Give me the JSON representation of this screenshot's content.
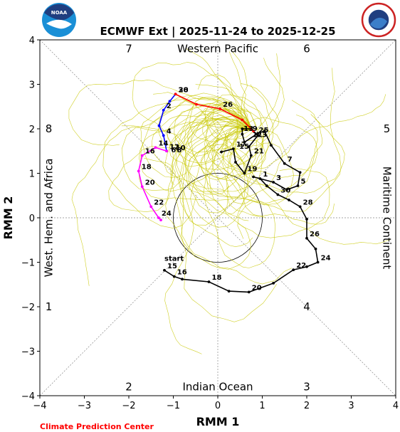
{
  "chart_data": {
    "type": "line",
    "title": "ECMWF Ext | 2025-11-24 to 2025-12-25",
    "xlabel": "RMM 1",
    "ylabel": "RMM 2",
    "xlim": [
      -4,
      4
    ],
    "ylim": [
      -4,
      4
    ],
    "x_ticks": [
      "−4",
      "−3",
      "−2",
      "−1",
      "0",
      "1",
      "2",
      "3",
      "4"
    ],
    "y_ticks": [
      "−4",
      "−3",
      "−2",
      "−1",
      "0",
      "1",
      "2",
      "3",
      "4"
    ],
    "credit": "Climate Prediction Center",
    "logos": [
      "noaa-logo",
      "national-weather-service-logo"
    ],
    "colors": {
      "observed": "#000000",
      "forecast_week1": "#0000ff",
      "forecast_week2": "#ff00ff",
      "ensemble_mean": "#ff0000",
      "ensemble_members": "#c8c800",
      "guide_lines": "#888888"
    },
    "phase_labels": [
      {
        "text": "1",
        "x": -3.8,
        "y": -2.0
      },
      {
        "text": "2",
        "x": -2.0,
        "y": -3.8
      },
      {
        "text": "3",
        "x": 2.0,
        "y": -3.8
      },
      {
        "text": "4",
        "x": 2.0,
        "y": -2.0
      },
      {
        "text": "5",
        "x": 3.8,
        "y": 2.0
      },
      {
        "text": "6",
        "x": 2.0,
        "y": 3.8
      },
      {
        "text": "7",
        "x": -2.0,
        "y": 3.8
      },
      {
        "text": "8",
        "x": -3.8,
        "y": 2.0
      }
    ],
    "region_labels": {
      "top": "Western Pacific",
      "bottom": "Indian Ocean",
      "left": "West. Hem. and Africa",
      "right": "Maritime Continent"
    },
    "series": [
      {
        "key": "observed",
        "color": "#000000",
        "points": [
          {
            "x": -1.2,
            "y": -1.18,
            "label": "15"
          },
          {
            "x": -0.98,
            "y": -1.32,
            "label": "16"
          },
          {
            "x": -0.8,
            "y": -1.38
          },
          {
            "x": -0.2,
            "y": -1.44,
            "label": "18"
          },
          {
            "x": 0.25,
            "y": -1.65
          },
          {
            "x": 0.7,
            "y": -1.67,
            "label": "20"
          },
          {
            "x": 1.25,
            "y": -1.47
          },
          {
            "x": 1.7,
            "y": -1.17,
            "label": "22"
          },
          {
            "x": 2.0,
            "y": -1.1
          },
          {
            "x": 2.25,
            "y": -1.0,
            "label": "24"
          },
          {
            "x": 2.2,
            "y": -0.7
          },
          {
            "x": 2.0,
            "y": -0.46,
            "label": "26"
          },
          {
            "x": 2.0,
            "y": -0.03
          },
          {
            "x": 1.85,
            "y": 0.25,
            "label": "28"
          },
          {
            "x": 1.6,
            "y": 0.4
          },
          {
            "x": 1.35,
            "y": 0.52,
            "label": "30"
          },
          {
            "x": 1.1,
            "y": 0.72
          },
          {
            "x": 0.95,
            "y": 0.88,
            "label": "1"
          },
          {
            "x": 0.8,
            "y": 0.92
          },
          {
            "x": 1.25,
            "y": 0.8,
            "label": "3"
          },
          {
            "x": 1.55,
            "y": 0.63
          },
          {
            "x": 1.8,
            "y": 0.72,
            "label": "5"
          },
          {
            "x": 1.85,
            "y": 1.02
          },
          {
            "x": 1.5,
            "y": 1.22,
            "label": "7"
          },
          {
            "x": 1.2,
            "y": 1.63
          },
          {
            "x": 1.05,
            "y": 1.95
          },
          {
            "x": 0.9,
            "y": 1.9
          },
          {
            "x": 0.6,
            "y": 1.7
          },
          {
            "x": 0.55,
            "y": 1.88
          },
          {
            "x": 0.55,
            "y": 2.0
          },
          {
            "x": 0.75,
            "y": 2.0
          },
          {
            "x": 0.9,
            "y": 1.85
          },
          {
            "x": 0.7,
            "y": 1.6
          },
          {
            "x": 0.75,
            "y": 1.4,
            "label": "21"
          },
          {
            "x": 0.6,
            "y": 1.0,
            "label": "19"
          },
          {
            "x": 0.4,
            "y": 1.25
          },
          {
            "x": 0.35,
            "y": 1.55,
            "label": "17"
          },
          {
            "x": 0.08,
            "y": 1.48
          }
        ]
      },
      {
        "key": "forecast_week1",
        "color": "#0000ff",
        "points": [
          {
            "x": -0.95,
            "y": 2.78,
            "label": "30"
          },
          {
            "x": -1.08,
            "y": 2.62
          },
          {
            "x": -1.22,
            "y": 2.42,
            "label": "2"
          },
          {
            "x": -1.32,
            "y": 2.07
          },
          {
            "x": -1.22,
            "y": 1.85,
            "label": "4"
          },
          {
            "x": -1.15,
            "y": 1.5
          }
        ]
      },
      {
        "key": "forecast_week2",
        "color": "#ff00ff",
        "points": [
          {
            "x": -1.15,
            "y": 1.5,
            "label": "12"
          },
          {
            "x": -1.4,
            "y": 1.58,
            "label": "14"
          },
          {
            "x": -1.7,
            "y": 1.4,
            "label": "16"
          },
          {
            "x": -1.78,
            "y": 1.05,
            "label": "18"
          },
          {
            "x": -1.7,
            "y": 0.7,
            "label": "20"
          },
          {
            "x": -1.5,
            "y": 0.25,
            "label": "22"
          },
          {
            "x": -1.33,
            "y": 0.0,
            "label": "24"
          },
          {
            "x": -1.28,
            "y": -0.05
          }
        ]
      },
      {
        "key": "ensemble_mean",
        "color": "#ff0000",
        "points": [
          {
            "x": -0.95,
            "y": 2.78,
            "label": "28"
          },
          {
            "x": -0.48,
            "y": 2.55
          },
          {
            "x": 0.05,
            "y": 2.45,
            "label": "26"
          },
          {
            "x": 0.55,
            "y": 2.2
          },
          {
            "x": 0.8,
            "y": 1.95
          }
        ]
      }
    ],
    "extra_labels": [
      {
        "text": "start",
        "x": -1.2,
        "y": -0.97
      },
      {
        "text": "13",
        "x": 0.58,
        "y": 1.95
      },
      {
        "text": "11",
        "x": 0.78,
        "y": 1.82
      },
      {
        "text": "23",
        "x": 0.88,
        "y": 1.82
      },
      {
        "text": "25",
        "x": 0.92,
        "y": 1.92
      },
      {
        "text": "15",
        "x": 0.48,
        "y": 1.55
      },
      {
        "text": "9",
        "x": 0.78,
        "y": 1.95
      },
      {
        "text": "6",
        "x": -1.05,
        "y": 1.47
      },
      {
        "text": "8",
        "x": -0.92,
        "y": 1.47
      },
      {
        "text": "10",
        "x": -0.95,
        "y": 1.52
      }
    ]
  }
}
